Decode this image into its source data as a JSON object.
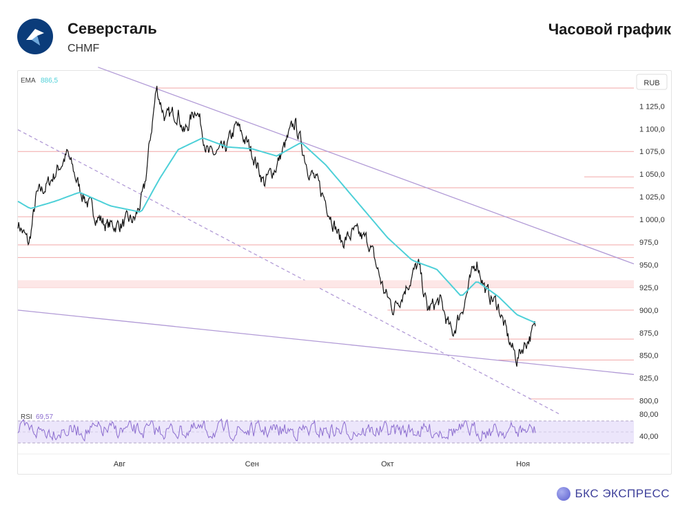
{
  "header": {
    "company": "Северсталь",
    "ticker": "CHMF",
    "chart_type": "Часовой график"
  },
  "footer": {
    "brand": "БКС ЭКСПРЕСС"
  },
  "colors": {
    "ema": "#4dd0d8",
    "trend": "#b19ad6",
    "level": "#f1a6a6",
    "rsi": "#8b6ccf",
    "rsi_band": "#ece6fb",
    "price": "#111111"
  },
  "chart_data": {
    "type": "line",
    "currency_label": "RUB",
    "ema_label": "EMA",
    "ema_value": "886,5",
    "rsi_label": "RSI",
    "rsi_value": "69,57",
    "y_ticks": [
      "1 125,0",
      "1 100,0",
      "1 075,0",
      "1 050,0",
      "1 025,0",
      "1 000,0",
      "975,0",
      "950,0",
      "925,0",
      "900,0",
      "875,0",
      "850,0",
      "825,0",
      "800,0"
    ],
    "y_values": [
      1125,
      1100,
      1075,
      1050,
      1025,
      1000,
      975,
      950,
      925,
      900,
      875,
      850,
      825,
      800
    ],
    "ylim": [
      785,
      1160
    ],
    "rsi_ticks": [
      "80,00",
      "40,00"
    ],
    "rsi_values": [
      80,
      40
    ],
    "x_ticks": [
      "Авг",
      "Сен",
      "Окт",
      "Ноя"
    ],
    "x_tick_pos": [
      0.165,
      0.38,
      0.6,
      0.82
    ],
    "levels": [
      {
        "value": 1145,
        "from": 0.22
      },
      {
        "value": 1075,
        "from": 0.0
      },
      {
        "value": 1035,
        "from": 0.4
      },
      {
        "value": 1003,
        "from": 0.0
      },
      {
        "value": 972,
        "from": 0.0
      },
      {
        "value": 958,
        "from": 0.0
      },
      {
        "value": 930,
        "from": 0.0
      },
      {
        "value": 925,
        "from": 0.0
      },
      {
        "value": 900,
        "from": 0.6
      },
      {
        "value": 868,
        "from": 0.7
      },
      {
        "value": 845,
        "from": 0.78
      },
      {
        "value": 802,
        "from": 0.83
      }
    ],
    "trendlines": [
      {
        "x1": 0.13,
        "y1": 1168,
        "x2": 1.0,
        "y2": 951,
        "dashed": false
      },
      {
        "x1": 0.0,
        "y1": 900,
        "x2": 1.0,
        "y2": 829,
        "dashed": false
      },
      {
        "x1": 0.0,
        "y1": 1099,
        "x2": 0.88,
        "y2": 785,
        "dashed": true
      }
    ],
    "price_keypoints": [
      [
        0.0,
        997
      ],
      [
        0.018,
        972
      ],
      [
        0.03,
        1025
      ],
      [
        0.05,
        1040
      ],
      [
        0.08,
        1072
      ],
      [
        0.1,
        1035
      ],
      [
        0.12,
        1010
      ],
      [
        0.145,
        993
      ],
      [
        0.17,
        995
      ],
      [
        0.19,
        1000
      ],
      [
        0.205,
        1030
      ],
      [
        0.215,
        1090
      ],
      [
        0.225,
        1145
      ],
      [
        0.24,
        1110
      ],
      [
        0.26,
        1120
      ],
      [
        0.27,
        1095
      ],
      [
        0.29,
        1125
      ],
      [
        0.31,
        1070
      ],
      [
        0.335,
        1075
      ],
      [
        0.355,
        1103
      ],
      [
        0.38,
        1075
      ],
      [
        0.4,
        1040
      ],
      [
        0.42,
        1060
      ],
      [
        0.45,
        1107
      ],
      [
        0.47,
        1060
      ],
      [
        0.5,
        1020
      ],
      [
        0.525,
        975
      ],
      [
        0.545,
        985
      ],
      [
        0.57,
        975
      ],
      [
        0.595,
        920
      ],
      [
        0.61,
        902
      ],
      [
        0.625,
        920
      ],
      [
        0.65,
        950
      ],
      [
        0.665,
        900
      ],
      [
        0.685,
        910
      ],
      [
        0.705,
        872
      ],
      [
        0.725,
        910
      ],
      [
        0.745,
        955
      ],
      [
        0.76,
        920
      ],
      [
        0.78,
        905
      ],
      [
        0.795,
        870
      ],
      [
        0.81,
        846
      ],
      [
        0.82,
        860
      ],
      [
        0.83,
        870
      ],
      [
        0.84,
        880
      ]
    ],
    "ema_keypoints": [
      [
        0.0,
        1020
      ],
      [
        0.02,
        1012
      ],
      [
        0.06,
        1020
      ],
      [
        0.1,
        1030
      ],
      [
        0.15,
        1015
      ],
      [
        0.2,
        1008
      ],
      [
        0.23,
        1045
      ],
      [
        0.26,
        1077
      ],
      [
        0.3,
        1090
      ],
      [
        0.34,
        1080
      ],
      [
        0.38,
        1078
      ],
      [
        0.42,
        1070
      ],
      [
        0.46,
        1085
      ],
      [
        0.5,
        1060
      ],
      [
        0.55,
        1020
      ],
      [
        0.6,
        980
      ],
      [
        0.64,
        955
      ],
      [
        0.68,
        945
      ],
      [
        0.72,
        915
      ],
      [
        0.745,
        932
      ],
      [
        0.78,
        915
      ],
      [
        0.81,
        895
      ],
      [
        0.84,
        886
      ]
    ]
  }
}
